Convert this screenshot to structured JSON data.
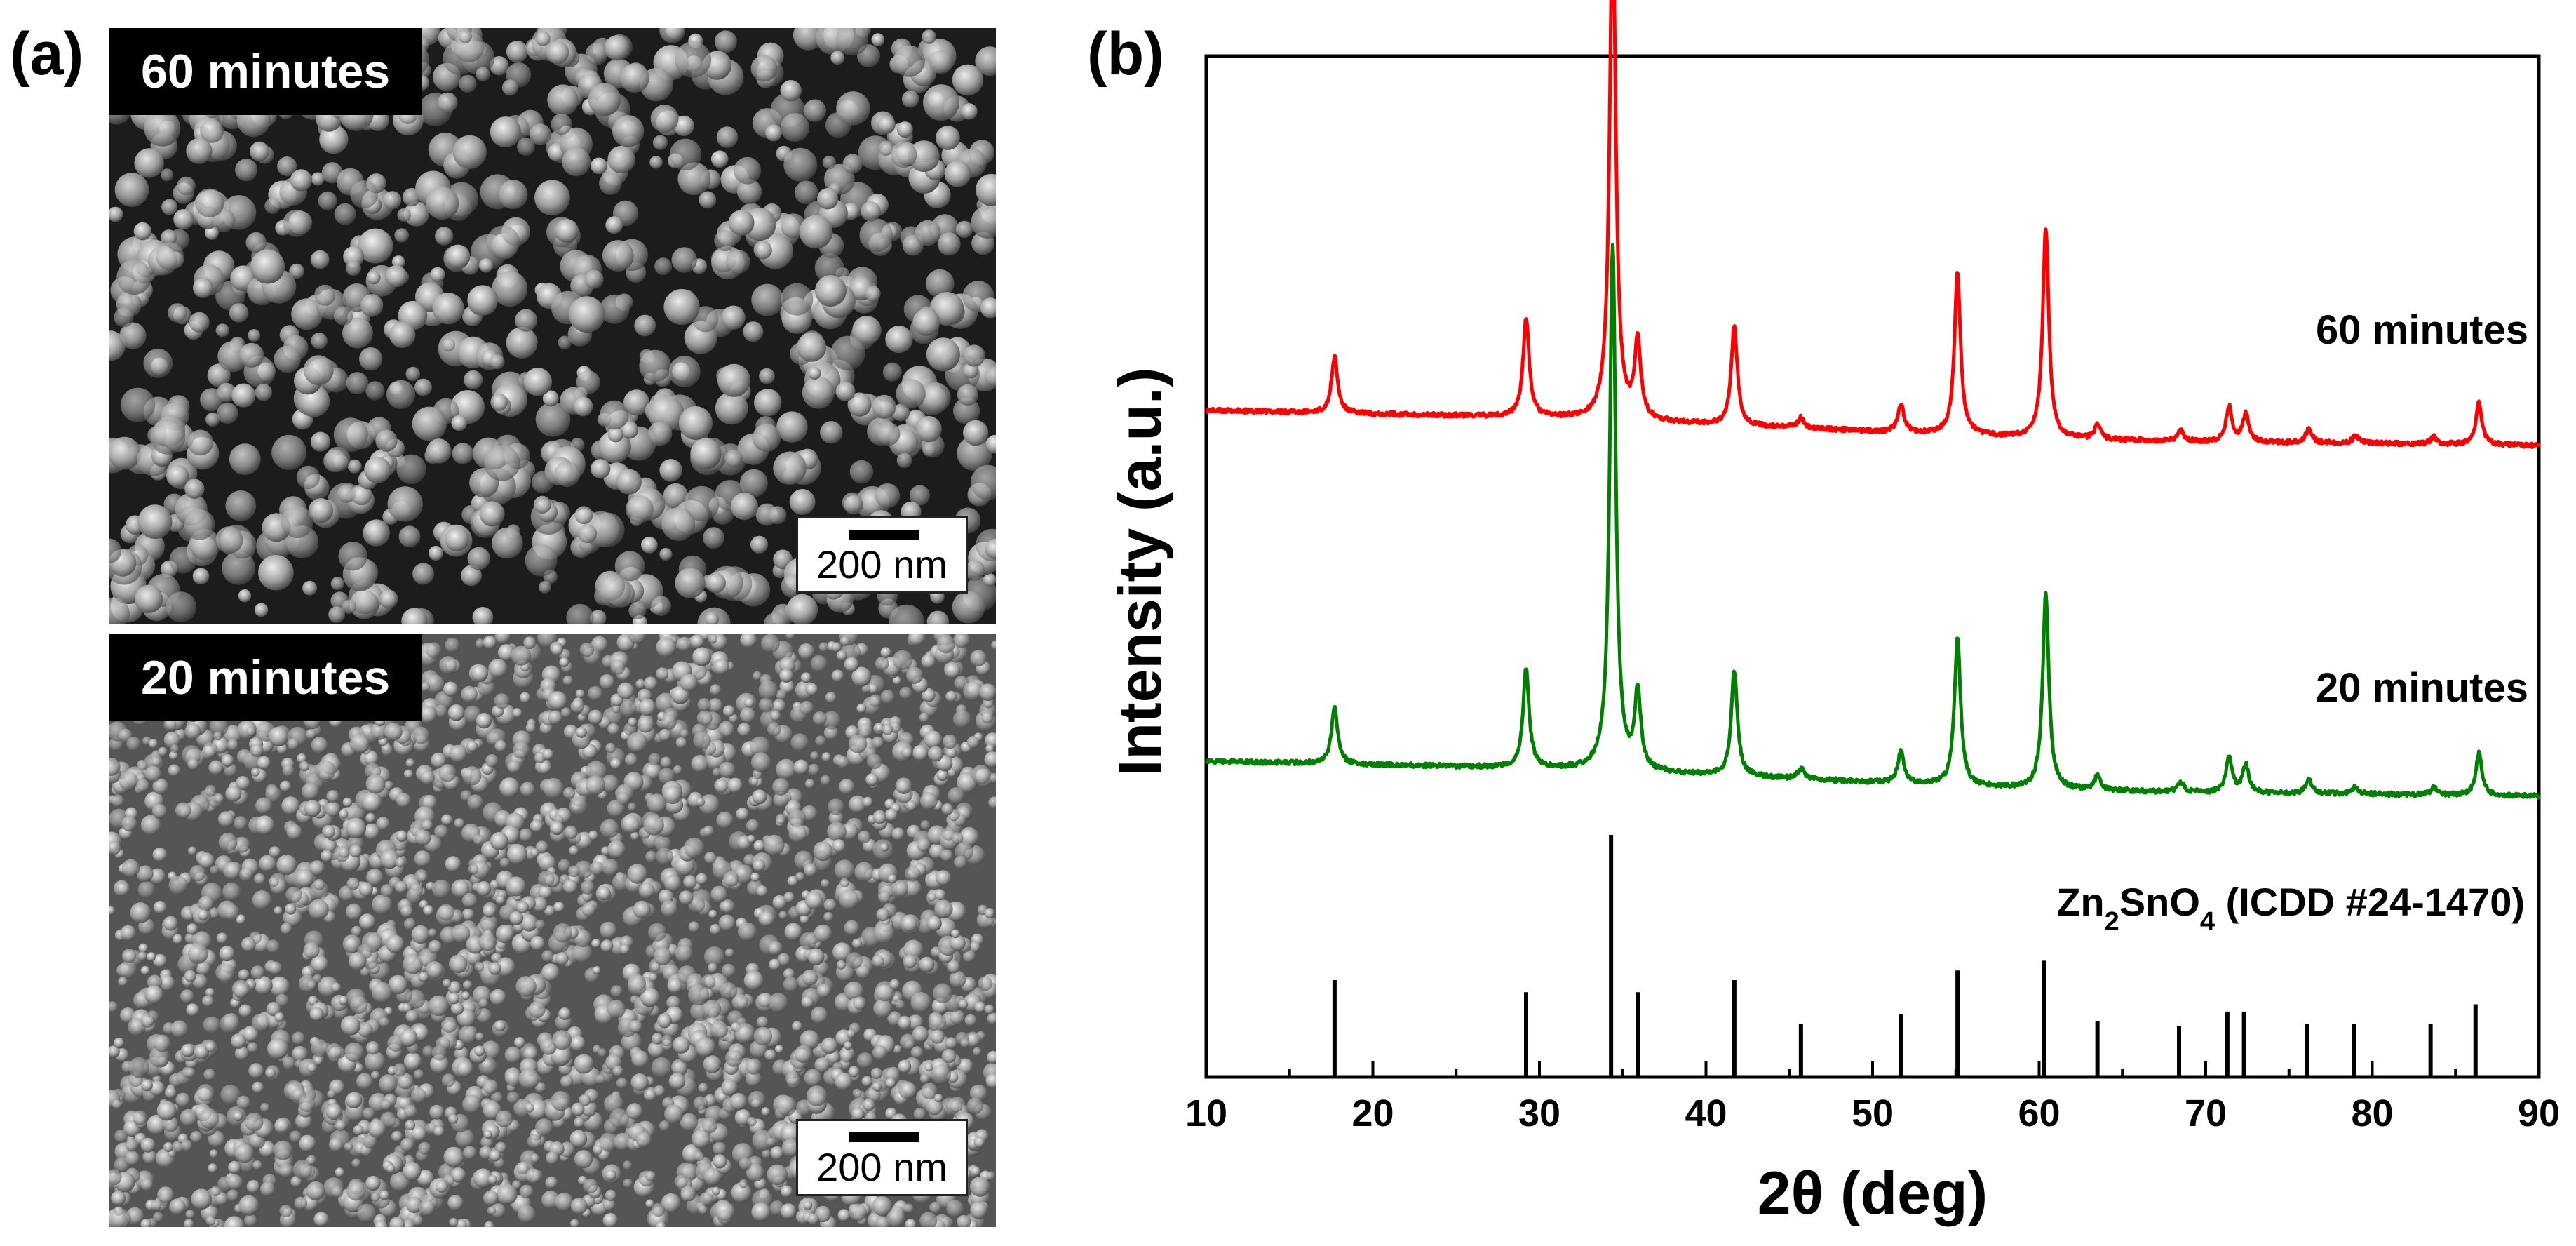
{
  "panel_a": {
    "label": "(a)",
    "images": [
      {
        "caption": "60 minutes",
        "scale_bar": "200 nm"
      },
      {
        "caption": "20 minutes",
        "scale_bar": "200 nm"
      }
    ]
  },
  "panel_b": {
    "label": "(b)"
  },
  "chart_data": {
    "type": "line",
    "xlabel": "2θ (deg)",
    "ylabel": "Intensity (a.u.)",
    "xlim": [
      10,
      90
    ],
    "x_ticks": [
      10,
      20,
      30,
      40,
      50,
      60,
      70,
      80,
      90
    ],
    "y_ticks": [],
    "grid": false,
    "series": [
      {
        "name": "60 minutes",
        "color": "#ff0000",
        "baseline": [
          [
            10,
            0.155
          ],
          [
            20,
            0.15
          ],
          [
            30,
            0.145
          ],
          [
            40,
            0.135
          ],
          [
            50,
            0.125
          ],
          [
            60,
            0.115
          ],
          [
            70,
            0.11
          ],
          [
            80,
            0.108
          ],
          [
            90,
            0.105
          ]
        ],
        "peaks": [
          [
            17.7,
            0.08
          ],
          [
            29.2,
            0.14
          ],
          [
            34.4,
            0.72
          ],
          [
            35.9,
            0.11
          ],
          [
            41.7,
            0.14
          ],
          [
            45.7,
            0.015
          ],
          [
            51.7,
            0.04
          ],
          [
            55.1,
            0.23
          ],
          [
            60.4,
            0.3
          ],
          [
            63.5,
            0.02
          ],
          [
            68.5,
            0.015
          ],
          [
            71.4,
            0.05
          ],
          [
            72.4,
            0.04
          ],
          [
            76.2,
            0.02
          ],
          [
            79.0,
            0.01
          ],
          [
            83.7,
            0.01
          ],
          [
            86.4,
            0.06
          ]
        ]
      },
      {
        "name": "20 minutes",
        "color": "#008000",
        "baseline": [
          [
            10,
            0.155
          ],
          [
            20,
            0.15
          ],
          [
            30,
            0.145
          ],
          [
            40,
            0.135
          ],
          [
            50,
            0.125
          ],
          [
            60,
            0.115
          ],
          [
            70,
            0.11
          ],
          [
            80,
            0.108
          ],
          [
            90,
            0.105
          ]
        ],
        "peaks": [
          [
            17.7,
            0.08
          ],
          [
            29.2,
            0.14
          ],
          [
            34.4,
            0.75
          ],
          [
            35.9,
            0.11
          ],
          [
            41.7,
            0.15
          ],
          [
            45.7,
            0.015
          ],
          [
            51.7,
            0.045
          ],
          [
            55.1,
            0.21
          ],
          [
            60.4,
            0.28
          ],
          [
            63.5,
            0.02
          ],
          [
            68.5,
            0.015
          ],
          [
            71.4,
            0.05
          ],
          [
            72.4,
            0.04
          ],
          [
            76.2,
            0.02
          ],
          [
            79.0,
            0.01
          ],
          [
            83.7,
            0.01
          ],
          [
            86.4,
            0.06
          ]
        ]
      }
    ],
    "reference": {
      "name_parts": [
        "Zn",
        "2",
        "SnO",
        "4",
        " (ICDD #24-1470)"
      ],
      "lines": [
        [
          17.7,
          0.4
        ],
        [
          29.2,
          0.35
        ],
        [
          34.3,
          1.0
        ],
        [
          35.9,
          0.35
        ],
        [
          41.7,
          0.4
        ],
        [
          45.7,
          0.22
        ],
        [
          51.7,
          0.26
        ],
        [
          55.1,
          0.44
        ],
        [
          60.3,
          0.48
        ],
        [
          63.5,
          0.23
        ],
        [
          68.4,
          0.21
        ],
        [
          71.3,
          0.27
        ],
        [
          72.3,
          0.27
        ],
        [
          76.1,
          0.22
        ],
        [
          78.9,
          0.22
        ],
        [
          83.5,
          0.22
        ],
        [
          86.2,
          0.3
        ]
      ]
    }
  }
}
